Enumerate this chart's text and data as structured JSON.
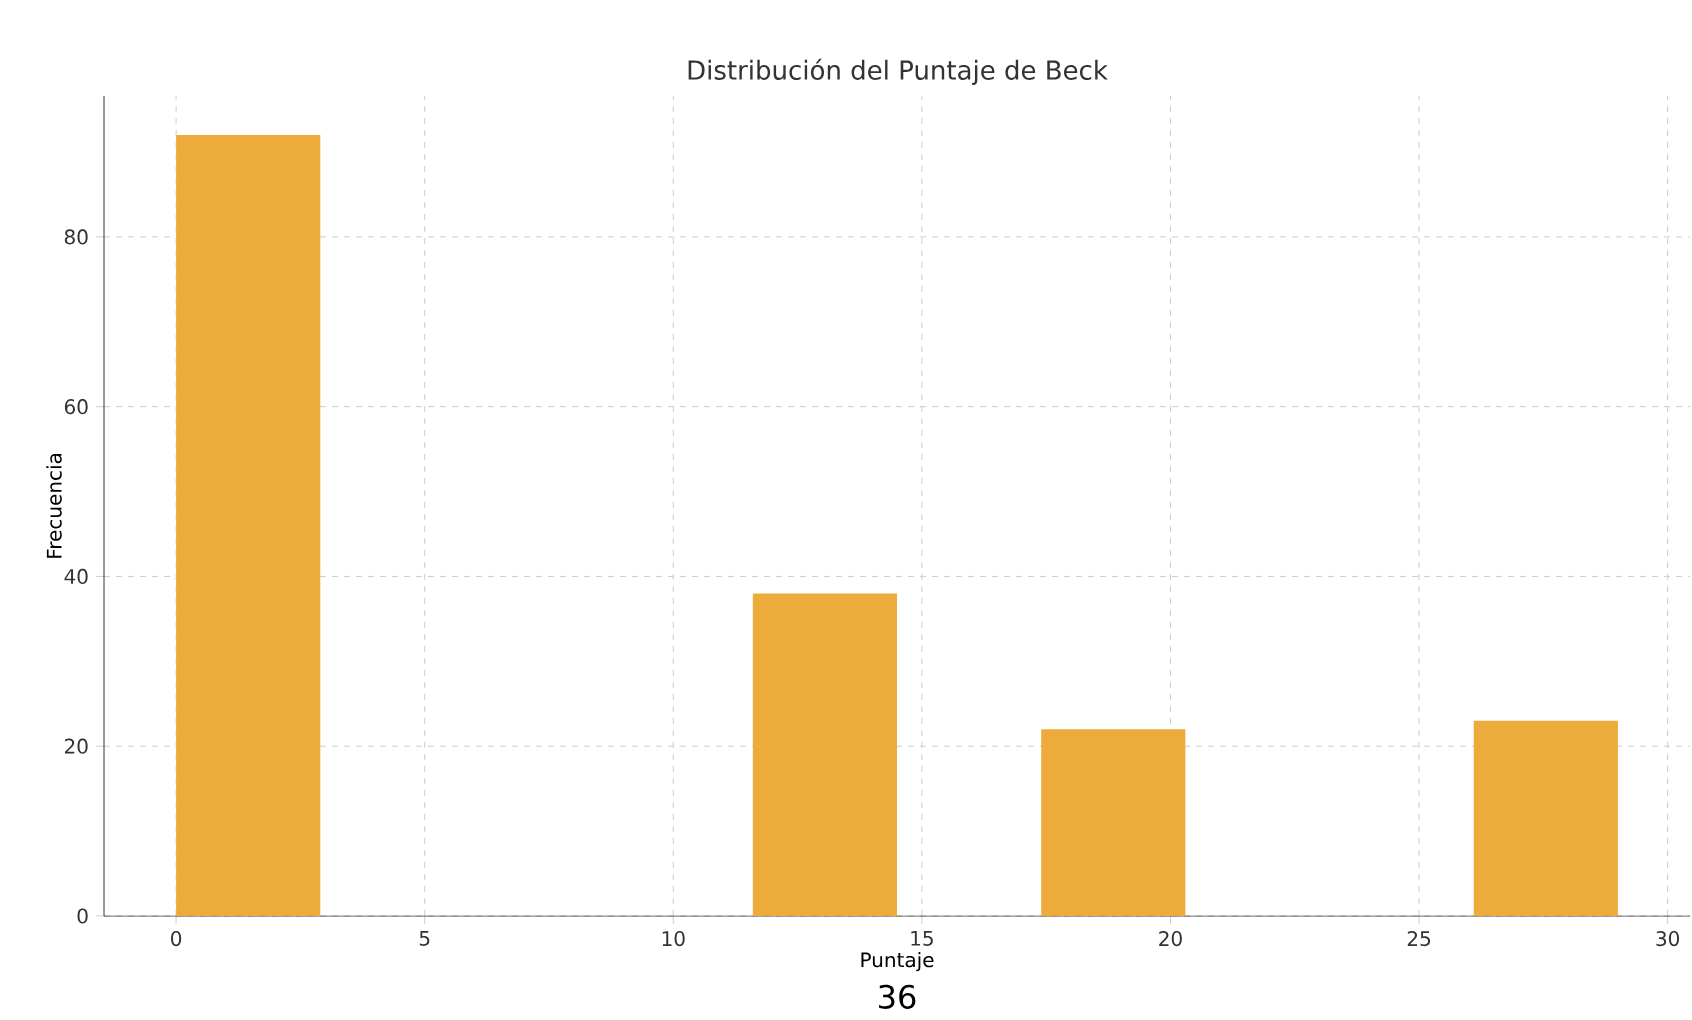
{
  "chart_data": {
    "type": "histogram",
    "title": "Distribución del Puntaje de Beck",
    "xlabel": "Puntaje",
    "ylabel": "Frecuencia",
    "bins": [
      0,
      2.9,
      5.8,
      8.7,
      11.6,
      14.5,
      17.4,
      20.3,
      23.2,
      26.1,
      29
    ],
    "values": [
      92,
      0,
      0,
      0,
      38,
      0,
      22,
      0,
      0,
      23
    ],
    "color": "#edab3b",
    "xlim": [
      -1.45,
      30.45
    ],
    "ylim": [
      0,
      96.6
    ],
    "xticks": [
      0,
      5,
      10,
      15,
      20,
      25,
      30
    ],
    "yticks": [
      0,
      20,
      40,
      60,
      80
    ],
    "grid": true,
    "annotations": [
      "36"
    ]
  }
}
